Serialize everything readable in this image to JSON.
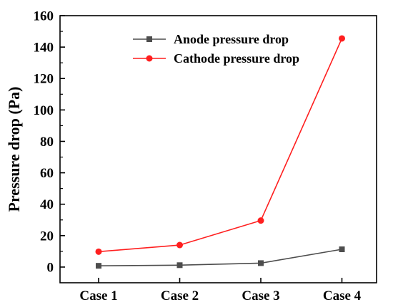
{
  "chart_data": {
    "type": "line",
    "title": "",
    "xlabel": "",
    "ylabel": "Pressure drop (Pa)",
    "categories": [
      "Case 1",
      "Case 2",
      "Case 3",
      "Case 4"
    ],
    "ylim": [
      -10,
      160
    ],
    "yticks": [
      0,
      20,
      40,
      60,
      80,
      100,
      120,
      140,
      160
    ],
    "ytick_labels": [
      "0",
      "20",
      "40",
      "60",
      "80",
      "100",
      "120",
      "140",
      "160"
    ],
    "grid": false,
    "legend_position": "top-center",
    "series": [
      {
        "name": "Anode pressure drop",
        "values": [
          0.8,
          1.2,
          2.5,
          11.3
        ],
        "color": "#4d4d4d",
        "marker": "square"
      },
      {
        "name": "Cathode pressure drop",
        "values": [
          9.8,
          14.0,
          29.6,
          145.5
        ],
        "color": "#ff1f1f",
        "marker": "circle"
      }
    ]
  }
}
